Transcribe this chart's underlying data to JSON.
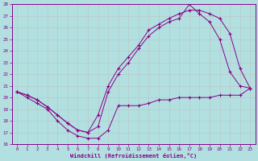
{
  "xlabel": "Windchill (Refroidissement éolien,°C)",
  "xlim": [
    -0.5,
    23.5
  ],
  "ylim": [
    16,
    28
  ],
  "yticks": [
    16,
    17,
    18,
    19,
    20,
    21,
    22,
    23,
    24,
    25,
    26,
    27,
    28
  ],
  "xticks": [
    0,
    1,
    2,
    3,
    4,
    5,
    6,
    7,
    8,
    9,
    10,
    11,
    12,
    13,
    14,
    15,
    16,
    17,
    18,
    19,
    20,
    21,
    22,
    23
  ],
  "bg_color": "#b2e0e0",
  "grid_color": "#b8c8c8",
  "line_color": "#880088",
  "line1_y": [
    20.5,
    20.0,
    19.5,
    19.0,
    18.0,
    17.2,
    16.7,
    16.5,
    16.5,
    17.2,
    19.3,
    19.3,
    19.3,
    19.5,
    19.8,
    19.8,
    20.0,
    20.0,
    20.0,
    20.0,
    20.2,
    20.2,
    20.2,
    20.8
  ],
  "line2_y": [
    20.5,
    20.2,
    19.8,
    19.2,
    18.5,
    17.8,
    17.2,
    17.0,
    17.5,
    20.5,
    22.0,
    23.0,
    24.2,
    25.3,
    26.0,
    26.5,
    26.8,
    28.0,
    27.2,
    26.5,
    25.0,
    22.2,
    21.0,
    20.8
  ],
  "line3_y": [
    20.5,
    20.2,
    19.8,
    19.2,
    18.5,
    17.8,
    17.2,
    17.0,
    18.5,
    21.0,
    22.5,
    23.5,
    24.5,
    25.8,
    26.3,
    26.8,
    27.2,
    27.5,
    27.5,
    27.2,
    26.8,
    25.5,
    22.5,
    20.8
  ]
}
